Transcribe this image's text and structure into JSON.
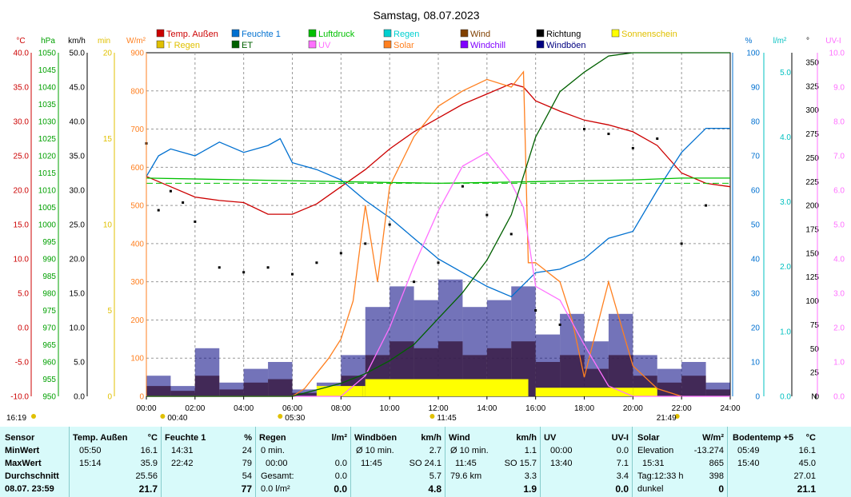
{
  "chart_data": {
    "type": "line",
    "title": "Samstag, 08.07.2023",
    "x_ticks": [
      "00:00",
      "02:00",
      "04:00",
      "06:00",
      "08:00",
      "10:00",
      "12:00",
      "14:00",
      "16:00",
      "18:00",
      "20:00",
      "22:00",
      "24:00"
    ],
    "xlim_hours": [
      0,
      24
    ],
    "grid": true,
    "legend_placement": "top",
    "legend": [
      {
        "name": "Temp. Außen",
        "color": "#cc0000"
      },
      {
        "name": "Feuchte 1",
        "color": "#0070d0"
      },
      {
        "name": "Luftdruck",
        "color": "#00c000"
      },
      {
        "name": "Regen",
        "color": "#00d0d0"
      },
      {
        "name": "Wind",
        "color": "#804000"
      },
      {
        "name": "Richtung",
        "color": "#000000"
      },
      {
        "name": "Sonnenschein",
        "color": "#ffff00"
      },
      {
        "name": "T Regen",
        "color": "#e0c000"
      },
      {
        "name": "ET",
        "color": "#006000"
      },
      {
        "name": "UV",
        "color": "#ff70ff"
      },
      {
        "name": "Solar",
        "color": "#ff8020"
      },
      {
        "name": "Windchill",
        "color": "#8000ff"
      },
      {
        "name": "Windböen",
        "color": "#000080"
      }
    ],
    "left_axes": [
      {
        "unit": "°C",
        "color": "#cc0000",
        "ticks": [
          "40.0",
          "35.0",
          "30.0",
          "25.0",
          "20.0",
          "15.0",
          "10.0",
          "5.0",
          "0.0",
          "-5.0",
          "-10.0"
        ]
      },
      {
        "unit": "hPa",
        "color": "#00a000",
        "ticks": [
          "1050",
          "1045",
          "1040",
          "1035",
          "1030",
          "1025",
          "1020",
          "1015",
          "1010",
          "1005",
          "1000",
          "995",
          "990",
          "985",
          "980",
          "975",
          "970",
          "965",
          "960",
          "955",
          "950"
        ]
      },
      {
        "unit": "km/h",
        "color": "#000000",
        "ticks": [
          "50.0",
          "45.0",
          "40.0",
          "35.0",
          "30.0",
          "25.0",
          "20.0",
          "15.0",
          "10.0",
          "5.0",
          "0.0"
        ]
      },
      {
        "unit": "min",
        "color": "#e0c000",
        "ticks": [
          "20",
          "15",
          "10",
          "5",
          "0"
        ]
      },
      {
        "unit": "W/m²",
        "color": "#ff8020",
        "ticks": [
          "900",
          "800",
          "700",
          "600",
          "500",
          "400",
          "300",
          "200",
          "100",
          "0"
        ]
      }
    ],
    "right_axes": [
      {
        "unit": "%",
        "color": "#0070d0",
        "ticks": [
          "100",
          "90",
          "80",
          "70",
          "60",
          "50",
          "40",
          "30",
          "20",
          "10",
          "0"
        ]
      },
      {
        "unit": "l/m²",
        "color": "#00c0c0",
        "ticks": [
          "5.0",
          "4.0",
          "3.0",
          "2.0",
          "1.0",
          "0.0"
        ]
      },
      {
        "unit": "°",
        "color": "#000000",
        "ticks": [
          "350",
          "325",
          "300",
          "275",
          "250",
          "225",
          "200",
          "175",
          "150",
          "125",
          "100",
          "75",
          "50",
          "25",
          "0"
        ],
        "zero_label": "N"
      },
      {
        "unit": "UV-I",
        "color": "#ff70ff",
        "ticks": [
          "10.0",
          "9.0",
          "8.0",
          "7.0",
          "6.0",
          "5.0",
          "4.0",
          "3.0",
          "2.0",
          "1.0",
          "0.0"
        ]
      }
    ],
    "sun_markers": [
      {
        "time": "16:19",
        "hour": 0
      },
      {
        "time": "00:40",
        "hour": 0.67
      },
      {
        "time": "05:30",
        "hour": 5.5
      },
      {
        "time": "11:45",
        "hour": 11.75
      },
      {
        "time": "21:49",
        "hour": 21.82
      }
    ],
    "series": [
      {
        "name": "Temp. Außen",
        "unit": "°C",
        "x": [
          0,
          1,
          2,
          3,
          4,
          5,
          6,
          7,
          8,
          9,
          10,
          11,
          12,
          13,
          14,
          15,
          15.5,
          16,
          17,
          18,
          19,
          20,
          21,
          22,
          23,
          24
        ],
        "y": [
          22,
          20.5,
          19,
          18.5,
          18.2,
          16.5,
          16.5,
          18,
          20.5,
          23,
          26,
          28.5,
          30.5,
          32.5,
          34,
          35.5,
          35,
          33,
          31.5,
          30.2,
          29.5,
          28.5,
          26.5,
          22.5,
          21,
          20.5
        ]
      },
      {
        "name": "Feuchte 1",
        "unit": "%",
        "x": [
          0,
          0.5,
          1,
          2,
          3,
          4,
          5,
          5.5,
          6,
          7,
          8,
          9,
          10,
          11,
          12,
          13,
          14,
          15,
          16,
          17,
          18,
          19,
          20,
          21,
          22,
          23,
          24
        ],
        "y": [
          64,
          70,
          72,
          70,
          74,
          71,
          73,
          75,
          68,
          66,
          63,
          57,
          52,
          46,
          40,
          36,
          32,
          29,
          36,
          37,
          40,
          46,
          48,
          60,
          71,
          78,
          78
        ]
      },
      {
        "name": "Luftdruck",
        "unit": "hPa",
        "x": [
          0,
          4,
          8,
          12,
          16,
          20,
          22,
          24
        ],
        "y": [
          1013.5,
          1013,
          1012.5,
          1012,
          1012.5,
          1013,
          1013.5,
          1013.5
        ]
      },
      {
        "name": "Solar",
        "unit": "W/m²",
        "x": [
          0,
          6,
          6.5,
          7,
          7.5,
          8,
          8.5,
          9,
          9.5,
          10,
          11,
          12,
          13,
          14,
          15,
          15.5,
          15.7,
          16,
          17,
          17.5,
          18,
          19,
          20,
          21,
          22
        ],
        "y": [
          0,
          0,
          20,
          60,
          100,
          150,
          250,
          500,
          300,
          550,
          680,
          760,
          800,
          830,
          810,
          850,
          350,
          350,
          300,
          200,
          50,
          300,
          80,
          20,
          0
        ]
      },
      {
        "name": "UV",
        "unit": "UV-I",
        "x": [
          0,
          8,
          9,
          10,
          11,
          12,
          13,
          14,
          15,
          15.5,
          16,
          17,
          18,
          19,
          20,
          24
        ],
        "y": [
          0,
          0,
          0.6,
          2,
          3.8,
          5.4,
          6.7,
          7.1,
          6.2,
          5.5,
          3.2,
          2.8,
          1.5,
          0.3,
          0,
          0
        ]
      },
      {
        "name": "ET",
        "unit": "l/m²",
        "x": [
          0,
          6,
          7,
          8,
          9,
          10,
          11,
          12,
          13,
          14,
          15,
          15.5,
          16,
          17,
          18,
          19,
          20,
          24
        ],
        "y": [
          0,
          0,
          0.1,
          0.2,
          0.35,
          0.55,
          0.8,
          1.2,
          1.6,
          2.1,
          2.8,
          3.4,
          4.0,
          4.7,
          5.0,
          5.25,
          5.3,
          5.3
        ]
      },
      {
        "name": "Wind",
        "unit": "km/h",
        "x": [
          0,
          1,
          2,
          3,
          4,
          5,
          6,
          7,
          8,
          9,
          10,
          11,
          12,
          13,
          14,
          15,
          16,
          17,
          18,
          19,
          20,
          21,
          22,
          23,
          24
        ],
        "y": [
          1.5,
          0.8,
          3,
          1,
          2,
          2.5,
          0.5,
          1,
          3,
          6,
          8,
          7,
          8,
          6,
          7,
          8,
          5,
          6,
          4,
          6,
          3,
          2,
          3,
          1,
          1
        ]
      },
      {
        "name": "Windböen",
        "unit": "km/h",
        "x": [
          0,
          1,
          2,
          3,
          4,
          5,
          6,
          7,
          8,
          9,
          10,
          11,
          12,
          13,
          14,
          15,
          16,
          17,
          18,
          19,
          20,
          21,
          22,
          23,
          24
        ],
        "y": [
          3,
          1.5,
          7,
          2,
          4,
          5,
          1,
          2,
          6,
          13,
          16,
          14,
          17,
          13,
          14,
          16,
          9,
          12,
          8,
          12,
          6,
          4,
          5,
          2,
          2
        ]
      },
      {
        "name": "Richtung",
        "unit": "°",
        "x": [
          0,
          0.5,
          1,
          1.5,
          2,
          3,
          4,
          5,
          6,
          7,
          8,
          9,
          10,
          11,
          12,
          13,
          14,
          15,
          16,
          17,
          18,
          19,
          20,
          21,
          22,
          23
        ],
        "y": [
          265,
          195,
          215,
          203,
          183,
          135,
          130,
          135,
          128,
          140,
          150,
          160,
          180,
          120,
          140,
          220,
          190,
          170,
          90,
          75,
          280,
          275,
          260,
          270,
          160,
          200
        ]
      },
      {
        "name": "Sonnenschein",
        "unit": "min",
        "x": [
          0,
          6.8,
          7,
          8.9,
          9,
          15.6,
          15.7,
          16,
          20,
          21,
          24
        ],
        "y": [
          0,
          0,
          0.6,
          0.6,
          1,
          1,
          0,
          0.5,
          0.5,
          0,
          0
        ]
      }
    ]
  },
  "stats": {
    "headers": {
      "sensor": "Sensor",
      "temp": "Temp. Außen",
      "temp_u": "°C",
      "feuchte": "Feuchte 1",
      "feuchte_u": "%",
      "regen": "Regen",
      "regen_u": "l/m²",
      "boeen": "Windböen",
      "boeen_u": "km/h",
      "wind": "Wind",
      "wind_u": "km/h",
      "uv": "UV",
      "uv_u": "UV-I",
      "solar": "Solar",
      "solar_u": "W/m²",
      "boden": "Bodentemp +5",
      "boden_u": "°C"
    },
    "rowlabels": {
      "min": "MinWert",
      "max": "MaxWert",
      "avg": "Durchschnitt",
      "cur": "08.07. 23:59"
    },
    "temp": {
      "min_t": "05:50",
      "min": "16.1",
      "max_t": "15:14",
      "max": "35.9",
      "avg": "25.56",
      "cur": "21.7"
    },
    "feuchte": {
      "min_t": "14:31",
      "min": "24",
      "max_t": "22:42",
      "max": "79",
      "avg": "54",
      "cur": "77"
    },
    "regen": {
      "r1a": "0 min.",
      "r1b": "",
      "r2a": "00:00",
      "r2b": "0.0",
      "r3a": "Gesamt:",
      "r3b": "0.0",
      "r4a": "0.0 l/m²",
      "r4b": "0.0"
    },
    "boeen": {
      "r1a": "Ø 10 min.",
      "r1b": "2.7",
      "r2a": "11:45",
      "r2b": "SO 24.1",
      "r3a": "",
      "r3b": "5.7",
      "r4b": "4.8"
    },
    "wind": {
      "r1a": "Ø 10 min.",
      "r1b": "1.1",
      "r2a": "11:45",
      "r2b": "SO 15.7",
      "r3a": "79.6 km",
      "r3b": "3.3",
      "r4b": "1.9"
    },
    "uv": {
      "r1a": "00:00",
      "r1b": "0.0",
      "r2a": "13:40",
      "r2b": "7.1",
      "r3b": "3.4",
      "r4b": "0.0"
    },
    "solar": {
      "r1a": "Elevation",
      "r1b": "-13.274",
      "r2a": "15:31",
      "r2b": "865",
      "r3a": "Tag:12:33 h",
      "r3b": "398",
      "r4a": "dunkel",
      "r4b": "0"
    },
    "boden": {
      "r1a": "05:49",
      "r1b": "16.1",
      "r2a": "15:40",
      "r2b": "45.0",
      "r3b": "27.01",
      "r4b": "21.1"
    }
  }
}
